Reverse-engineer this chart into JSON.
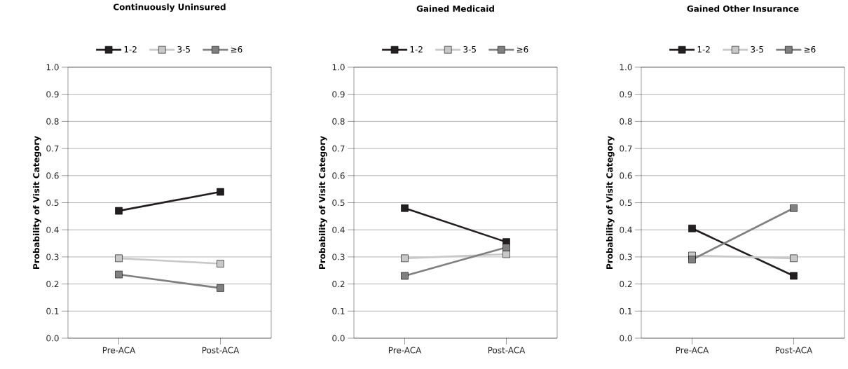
{
  "chart_data": [
    {
      "type": "line",
      "title": "Continuously Uninsured",
      "ylabel": "Probability of Visit Category",
      "categories": [
        "Pre-ACA",
        "Post-ACA"
      ],
      "series": [
        {
          "name": "1-2",
          "color": "#231f20",
          "values": [
            0.47,
            0.54
          ]
        },
        {
          "name": "3-5",
          "color": "#c8c8c8",
          "values": [
            0.295,
            0.275
          ]
        },
        {
          "name": "≥6",
          "color": "#808080",
          "values": [
            0.235,
            0.185
          ]
        }
      ],
      "ylim": [
        0,
        1
      ],
      "yticks": [
        {
          "value": 0,
          "label": "0.0"
        },
        {
          "value": 0.1,
          "label": "0.1"
        },
        {
          "value": 0.2,
          "label": "0.2"
        },
        {
          "value": 0.3,
          "label": "0.3"
        },
        {
          "value": 0.4,
          "label": "0.4"
        },
        {
          "value": 0.5,
          "label": "0.5"
        },
        {
          "value": 0.6,
          "label": "0.6"
        },
        {
          "value": 0.7,
          "label": "0.7"
        },
        {
          "value": 0.8,
          "label": "0.8"
        },
        {
          "value": 0.9,
          "label": "0.9"
        },
        {
          "value": 1,
          "label": "1.0"
        }
      ],
      "grid": "y",
      "legend": "top",
      "marker": "square",
      "line_style": "solid"
    },
    {
      "type": "line",
      "title": "Gained Medicaid",
      "ylabel": "Probability of Visit Category",
      "categories": [
        "Pre-ACA",
        "Post-ACA"
      ],
      "series": [
        {
          "name": "1-2",
          "color": "#231f20",
          "values": [
            0.48,
            0.355
          ]
        },
        {
          "name": "3-5",
          "color": "#c8c8c8",
          "values": [
            0.295,
            0.31
          ]
        },
        {
          "name": "≥6",
          "color": "#808080",
          "values": [
            0.23,
            0.335
          ]
        }
      ],
      "ylim": [
        0,
        1
      ],
      "yticks": [
        {
          "value": 0,
          "label": "0.0"
        },
        {
          "value": 0.1,
          "label": "0.1"
        },
        {
          "value": 0.2,
          "label": "0.2"
        },
        {
          "value": 0.3,
          "label": "0.3"
        },
        {
          "value": 0.4,
          "label": "0.4"
        },
        {
          "value": 0.5,
          "label": "0.5"
        },
        {
          "value": 0.6,
          "label": "0.6"
        },
        {
          "value": 0.7,
          "label": "0.7"
        },
        {
          "value": 0.8,
          "label": "0.8"
        },
        {
          "value": 0.9,
          "label": "0.9"
        },
        {
          "value": 1,
          "label": "1.0"
        }
      ],
      "grid": "y",
      "legend": "top",
      "marker": "square",
      "line_style": "solid"
    },
    {
      "type": "line",
      "title": "Gained Other Insurance",
      "ylabel": "Probability of Visit Category",
      "categories": [
        "Pre-ACA",
        "Post-ACA"
      ],
      "series": [
        {
          "name": "1-2",
          "color": "#231f20",
          "values": [
            0.405,
            0.23
          ]
        },
        {
          "name": "3-5",
          "color": "#c8c8c8",
          "values": [
            0.305,
            0.295
          ]
        },
        {
          "name": "≥6",
          "color": "#808080",
          "values": [
            0.29,
            0.48
          ]
        }
      ],
      "ylim": [
        0,
        1
      ],
      "yticks": [
        {
          "value": 0,
          "label": "0.0"
        },
        {
          "value": 0.1,
          "label": "0.1"
        },
        {
          "value": 0.2,
          "label": "0.2"
        },
        {
          "value": 0.3,
          "label": "0.3"
        },
        {
          "value": 0.4,
          "label": "0.4"
        },
        {
          "value": 0.5,
          "label": "0.5"
        },
        {
          "value": 0.6,
          "label": "0.6"
        },
        {
          "value": 0.7,
          "label": "0.7"
        },
        {
          "value": 0.8,
          "label": "0.8"
        },
        {
          "value": 0.9,
          "label": "0.9"
        },
        {
          "value": 1,
          "label": "1.0"
        }
      ],
      "grid": "y",
      "legend": "top",
      "marker": "square",
      "line_style": "solid"
    }
  ]
}
